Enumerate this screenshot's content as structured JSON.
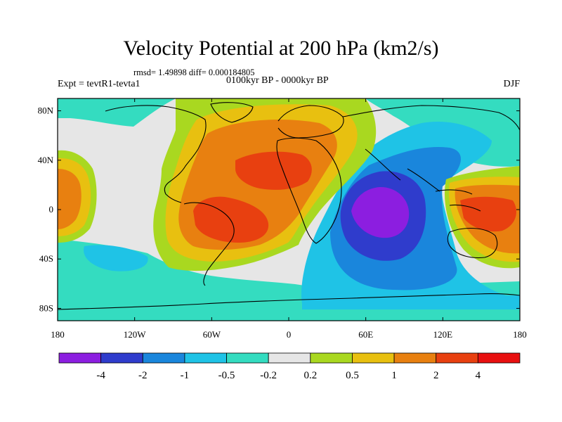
{
  "title": "Velocity Potential at 200 hPa (km2/s)",
  "stats": "rmsd= 1.49898 diff= 0.000184805",
  "period": "0100kyr BP - 0000kyr BP",
  "experiment": "Expt = tevtR1-tevta1",
  "season": "DJF",
  "x_ticks": [
    "180",
    "120W",
    "60W",
    "0",
    "60E",
    "120E",
    "180"
  ],
  "y_ticks": [
    "80N",
    "40N",
    "0",
    "40S",
    "80S"
  ],
  "colorbar": {
    "labels": [
      "-4",
      "-2",
      "-1",
      "-0.5",
      "-0.2",
      "0.2",
      "0.5",
      "1",
      "2",
      "4"
    ],
    "colors": [
      "#8c1ee0",
      "#2f3ccc",
      "#1a86dc",
      "#1fc3e6",
      "#34dcc0",
      "#e6e6e6",
      "#a9d820",
      "#e8c010",
      "#e88010",
      "#e84010",
      "#e81010"
    ]
  },
  "chart_data": {
    "type": "heatmap",
    "title": "Velocity Potential at 200 hPa (km2/s)",
    "subtitle": "rmsd= 1.49898 diff= 0.000184805",
    "field": "velocity potential difference, 200 hPa, DJF",
    "units": "km2/s",
    "contour_levels": [
      -4,
      -2,
      -1,
      -0.5,
      -0.2,
      0.2,
      0.5,
      1,
      2,
      4
    ],
    "xlim": [
      -180,
      180
    ],
    "ylim": [
      -90,
      90
    ],
    "features": [
      {
        "region": "Indian Ocean",
        "sign": "negative",
        "approx_min": -4
      },
      {
        "region": "Tropical Atlantic / South America",
        "sign": "positive",
        "approx_max": 4
      },
      {
        "region": "Western Pacific",
        "sign": "positive",
        "approx_max": 4
      }
    ]
  }
}
